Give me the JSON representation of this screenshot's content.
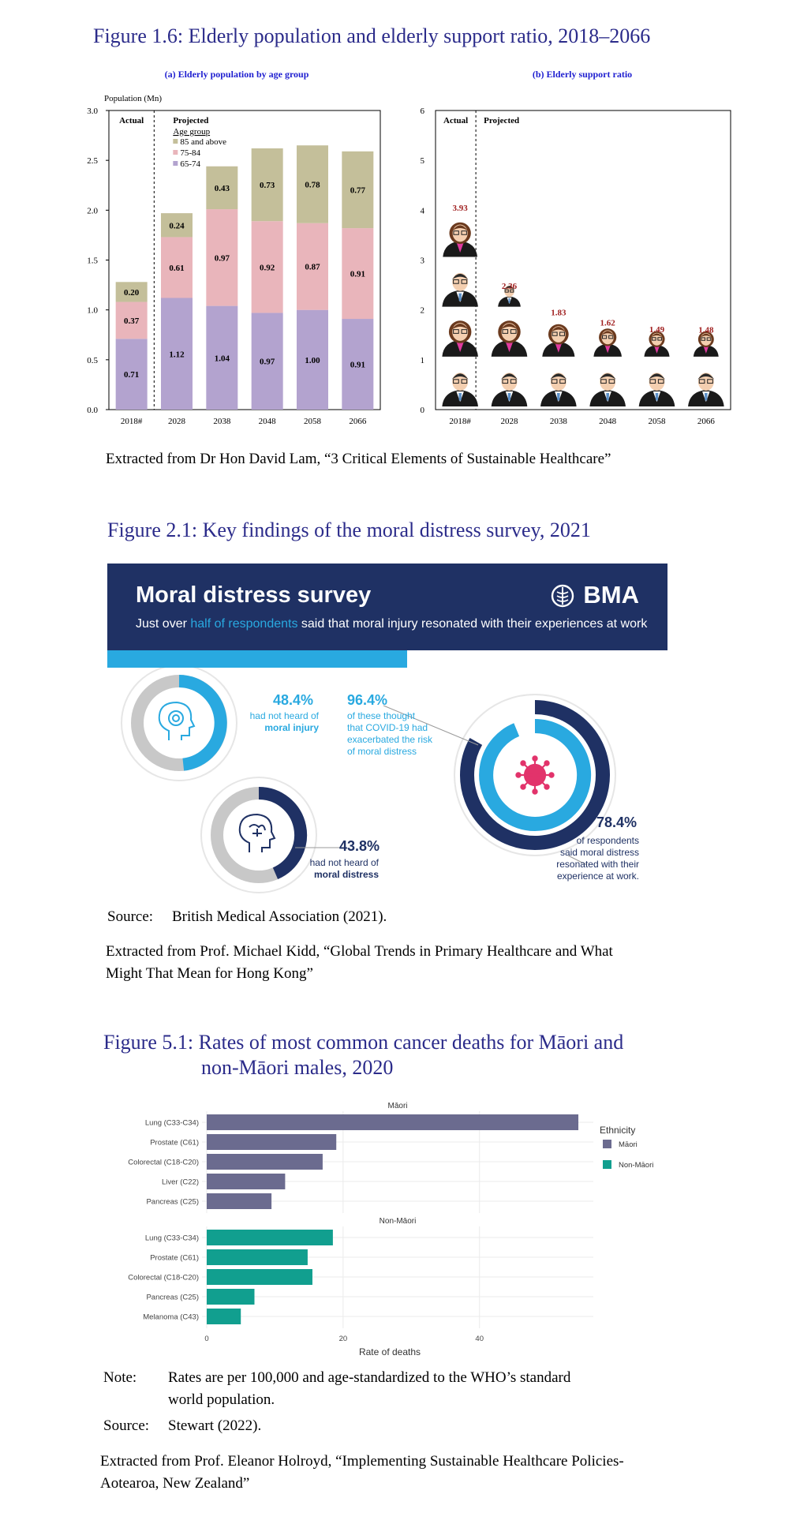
{
  "figure1": {
    "title": "Figure 1.6: Elderly population and elderly support ratio, 2018–2066",
    "extract": "Extracted from Dr Hon David Lam, “3 Critical Elements of Sustainable Healthcare”",
    "colors": {
      "band_65_74": "#b3a3cf",
      "band_75_84": "#e9b5bb",
      "band_85_plus": "#c4bf9a",
      "support_value": "#a02020"
    }
  },
  "figure2": {
    "title": "Figure 2.1: Key findings of the moral distress survey, 2021",
    "banner_title": "Moral distress survey",
    "logo_text": "BMA",
    "subtitle_pre": "Just over ",
    "subtitle_highlight": "half of respondents",
    "subtitle_post": " said that moral injury resonated with their experiences at work",
    "stats": [
      {
        "pct": "48.4%",
        "line1": "had not heard of",
        "line2": "moral injury"
      },
      {
        "pct": "96.4%",
        "line1": "of these thought",
        "line2": "that COVID-19 had",
        "line3": "exacerbated the risk",
        "line4": "of moral distress"
      },
      {
        "pct": "43.8%",
        "line1": "had not heard of",
        "line2": "moral distress"
      },
      {
        "pct": "78.4%",
        "line1": "of respondents",
        "line2": "said moral distress",
        "line3": "resonated with their",
        "line4": "experience at work."
      }
    ],
    "source_label": "Source:",
    "source_text": "British Medical Association (2021).",
    "extract_line1": "Extracted from Prof. Michael Kidd, “Global Trends in Primary Healthcare and What",
    "extract_line2": "Might That Mean for Hong Kong”",
    "colors": {
      "navy": "#1f3164",
      "cyan": "#29a9e0",
      "grey": "#c8c8c8",
      "virus": "#e2336b"
    }
  },
  "figure5": {
    "title_line1": "Figure 5.1:  Rates of most common cancer deaths for Māori and",
    "title_line2": "non-Māori males, 2020",
    "note_label": "Note:",
    "note_line1": "Rates are per 100,000 and age-standardized to the WHO’s standard",
    "note_line2": "world population.",
    "source_label": "Source:",
    "source_text": "Stewart (2022).",
    "extract_line1": "Extracted from Prof. Eleanor Holroyd, “Implementing Sustainable Healthcare Policies-",
    "extract_line2": "Aotearoa, New Zealand”",
    "colors": {
      "maori": "#6b6b8f",
      "non_maori": "#119f8f"
    }
  },
  "chart_data": [
    {
      "type": "bar",
      "stacked": true,
      "title": "(a) Elderly population by age group",
      "ylabel": "Population (Mn)",
      "ylim": [
        0,
        3.0
      ],
      "yticks": [
        "0.0",
        "0.5",
        "1.0",
        "1.5",
        "2.0",
        "2.5",
        "3.0"
      ],
      "categories": [
        "2018#",
        "2028",
        "2038",
        "2048",
        "2058",
        "2066"
      ],
      "legend_title": "Age group",
      "period_labels": {
        "actual": "Actual",
        "projected": "Projected"
      },
      "series": [
        {
          "name": "65-74",
          "values": [
            0.71,
            1.12,
            1.04,
            0.97,
            1.0,
            0.91
          ],
          "labels": [
            "0.71",
            "1.12",
            "1.04",
            "0.97",
            "1.00",
            "0.91"
          ]
        },
        {
          "name": "75-84",
          "values": [
            0.37,
            0.61,
            0.97,
            0.92,
            0.87,
            0.91
          ],
          "labels": [
            "0.37",
            "0.61",
            "0.97",
            "0.92",
            "0.87",
            "0.91"
          ]
        },
        {
          "name": "85 and above",
          "values": [
            0.2,
            0.24,
            0.43,
            0.73,
            0.78,
            0.77
          ],
          "labels": [
            "0.20",
            "0.24",
            "0.43",
            "0.73",
            "0.78",
            "0.77"
          ]
        }
      ],
      "legend_order": [
        "85 and above",
        "75-84",
        "65-74"
      ]
    },
    {
      "type": "bar",
      "title": "(b) Elderly support ratio",
      "ylim": [
        0,
        6
      ],
      "yticks": [
        "0",
        "1",
        "2",
        "3",
        "4",
        "5",
        "6"
      ],
      "categories": [
        "2018#",
        "2028",
        "2038",
        "2048",
        "2058",
        "2066"
      ],
      "values": [
        3.93,
        2.36,
        1.83,
        1.62,
        1.49,
        1.48
      ],
      "labels": [
        "3.93",
        "2.36",
        "1.83",
        "1.62",
        "1.49",
        "1.48"
      ],
      "period_labels": {
        "actual": "Actual",
        "projected": "Projected"
      }
    },
    {
      "type": "bar",
      "orientation": "horizontal",
      "xlabel": "Rate of deaths",
      "xlim": [
        0,
        56
      ],
      "xticks": [
        0,
        20,
        40
      ],
      "legend_title": "Ethnicity",
      "panels": [
        {
          "name": "Māori",
          "categories": [
            "Lung (C33-C34)",
            "Prostate (C61)",
            "Colorectal (C18-C20)",
            "Liver (C22)",
            "Pancreas (C25)"
          ],
          "values": [
            54.5,
            19,
            17,
            11.5,
            9.5
          ]
        },
        {
          "name": "Non-Māori",
          "categories": [
            "Lung (C33-C34)",
            "Prostate (C61)",
            "Colorectal (C18-C20)",
            "Pancreas (C25)",
            "Melanoma (C43)"
          ],
          "values": [
            18.5,
            14.8,
            15.5,
            7,
            5
          ]
        }
      ]
    }
  ]
}
